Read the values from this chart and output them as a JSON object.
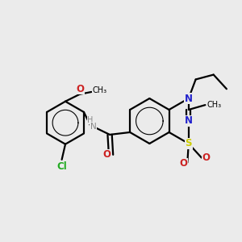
{
  "background_color": "#ebebeb",
  "atom_colors": {
    "C": "#000000",
    "N": "#2222cc",
    "O": "#cc2222",
    "S": "#cccc00",
    "Cl": "#22aa22",
    "H": "#888888"
  },
  "bond_color": "#000000",
  "figsize": [
    3.0,
    3.0
  ],
  "dpi": 100
}
